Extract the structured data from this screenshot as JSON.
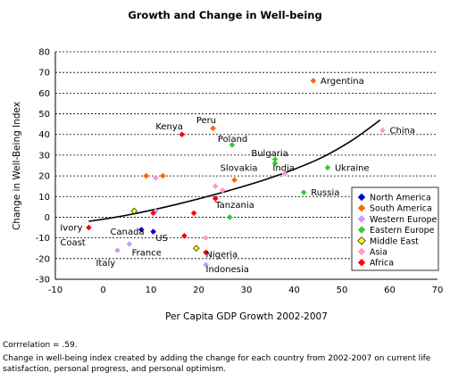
{
  "chart_data": {
    "type": "scatter",
    "title": "Growth and Change in Well-being",
    "xlabel": "Per Capita GDP Growth 2002-2007",
    "ylabel": "Change in Well-Being Index",
    "xlim": [
      -10,
      70
    ],
    "ylim": [
      -30,
      80
    ],
    "x_ticks": [
      "-10",
      "0",
      "10",
      "20",
      "30",
      "40",
      "50",
      "60",
      "70"
    ],
    "y_ticks": [
      "-30",
      "-20",
      "-10",
      "0",
      "10",
      "20",
      "30",
      "40",
      "50",
      "60",
      "70",
      "80"
    ],
    "grid": "horizontal",
    "legend_position": "right",
    "series": [
      {
        "name": "North America",
        "color": "#0000cc",
        "points": [
          {
            "x": 8,
            "y": -6
          },
          {
            "x": 10.5,
            "y": -7
          }
        ]
      },
      {
        "name": "South America",
        "color": "#ff6600",
        "points": [
          {
            "x": 44,
            "y": 66
          },
          {
            "x": 23,
            "y": 43
          },
          {
            "x": 9,
            "y": 20
          },
          {
            "x": 12.5,
            "y": 20
          },
          {
            "x": 27.5,
            "y": 18
          }
        ]
      },
      {
        "name": "Western Europe",
        "color": "#cc99ff",
        "points": [
          {
            "x": 3,
            "y": -16
          },
          {
            "x": 5.5,
            "y": -13
          },
          {
            "x": 11,
            "y": 3
          },
          {
            "x": 21.5,
            "y": -23
          }
        ]
      },
      {
        "name": "Eastern Europe",
        "color": "#33cc33",
        "points": [
          {
            "x": 27,
            "y": 35
          },
          {
            "x": 36,
            "y": 28
          },
          {
            "x": 36,
            "y": 26
          },
          {
            "x": 47,
            "y": 24
          },
          {
            "x": 42,
            "y": 12
          },
          {
            "x": 26.5,
            "y": 0
          }
        ]
      },
      {
        "name": "Middle East",
        "color": "#ffff00",
        "points": [
          {
            "x": 6.5,
            "y": 3
          },
          {
            "x": 19.5,
            "y": -15
          }
        ]
      },
      {
        "name": "Asia",
        "color": "#ff99cc",
        "points": [
          {
            "x": 58.5,
            "y": 42
          },
          {
            "x": 38,
            "y": 21
          },
          {
            "x": 11,
            "y": 19
          },
          {
            "x": 23.5,
            "y": 15
          },
          {
            "x": 25,
            "y": 13
          },
          {
            "x": 21.5,
            "y": -10
          }
        ]
      },
      {
        "name": "Africa",
        "color": "#ff0000",
        "points": [
          {
            "x": 16.5,
            "y": 40
          },
          {
            "x": 23.5,
            "y": 9
          },
          {
            "x": 19,
            "y": 2
          },
          {
            "x": 10.5,
            "y": 2
          },
          {
            "x": -3,
            "y": -5
          },
          {
            "x": 17,
            "y": -9
          },
          {
            "x": 21.5,
            "y": -17
          }
        ]
      }
    ],
    "annotations": [
      {
        "text": "Argentina",
        "x": 45.5,
        "y": 66
      },
      {
        "text": "Peru",
        "x": 19.5,
        "y": 47
      },
      {
        "text": "Kenya",
        "x": 11,
        "y": 44
      },
      {
        "text": "Poland",
        "x": 24,
        "y": 38
      },
      {
        "text": "China",
        "x": 60,
        "y": 42
      },
      {
        "text": "Bulgaria",
        "x": 31,
        "y": 31
      },
      {
        "text": "Slovakia",
        "x": 24.5,
        "y": 24
      },
      {
        "text": "India",
        "x": 35.5,
        "y": 24
      },
      {
        "text": "Ukraine",
        "x": 48.5,
        "y": 24
      },
      {
        "text": "Russia",
        "x": 43.5,
        "y": 12
      },
      {
        "text": "Tanzania",
        "x": 23.5,
        "y": 6
      },
      {
        "text": "Ivory",
        "x": -9,
        "y": -5
      },
      {
        "text": "Coast",
        "x": -9,
        "y": -12
      },
      {
        "text": "Canada",
        "x": 1.5,
        "y": -7
      },
      {
        "text": "US",
        "x": 11,
        "y": -10
      },
      {
        "text": "France",
        "x": 6,
        "y": -17
      },
      {
        "text": "Italy",
        "x": -1.5,
        "y": -22
      },
      {
        "text": "Nigeria",
        "x": 21.5,
        "y": -18
      },
      {
        "text": "Indonesia",
        "x": 21.5,
        "y": -25
      }
    ],
    "trendline": {
      "type": "curve",
      "points": [
        {
          "x": -3,
          "y": -2
        },
        {
          "x": 5,
          "y": 1
        },
        {
          "x": 15,
          "y": 6
        },
        {
          "x": 25,
          "y": 12
        },
        {
          "x": 35,
          "y": 19
        },
        {
          "x": 45,
          "y": 28
        },
        {
          "x": 52,
          "y": 37
        },
        {
          "x": 58,
          "y": 47
        }
      ]
    }
  },
  "footer": {
    "correlation": "Corrrelation = .59.",
    "note": "Change in well-being index created by adding the change for each country from 2002-2007 on current life satisfaction, personal progress, and personal optimism."
  }
}
